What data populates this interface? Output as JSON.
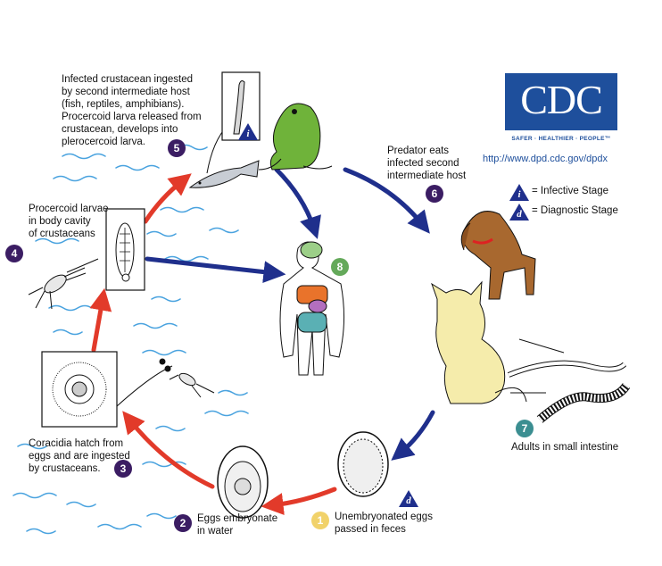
{
  "logo": {
    "text": "CDC",
    "tagline": "SAFER · HEALTHIER · PEOPLE™",
    "url": "http://www.dpd.cdc.gov/dpdx",
    "color": "#1e4f9c"
  },
  "legend": {
    "infective_letter": "i",
    "infective_label": "= Infective Stage",
    "diagnostic_letter": "d",
    "diagnostic_label": "= Diagnostic Stage"
  },
  "steps": {
    "s1": {
      "number": "1",
      "label_line1": "Unembryonated eggs",
      "label_line2": "passed in feces"
    },
    "s2": {
      "number": "2",
      "label_line1": "Eggs embryonate",
      "label_line2": "in water"
    },
    "s3": {
      "number": "3",
      "label_line1": "Coracidia hatch from",
      "label_line2": "eggs and are ingested",
      "label_line3": "by crustaceans."
    },
    "s4": {
      "number": "4",
      "label_line1": "Procercoid larvae",
      "label_line2": "in body cavity",
      "label_line3": "of crustaceans"
    },
    "s5": {
      "number": "5",
      "label_line1": "Infected crustacean ingested",
      "label_line2": "by second intermediate host",
      "label_line3": "(fish, reptiles, amphibians).",
      "label_line4": "Procercoid larva released from",
      "label_line5": "crustacean, develops into",
      "label_line6": "plerocercoid larva."
    },
    "s6": {
      "number": "6",
      "label_line1": "Predator eats",
      "label_line2": "infected second",
      "label_line3": "intermediate host"
    },
    "s7": {
      "number": "7",
      "label_line1": "Adults in small intestine"
    },
    "s8": {
      "number": "8"
    }
  },
  "stage_markers": {
    "infective": "i",
    "diagnostic": "d"
  },
  "colors": {
    "red_arrow": "#e23a2a",
    "blue_arrow": "#1f2f8c",
    "water": "#4aa3df",
    "step_purple": "#3b1d63",
    "step_green": "#64a95a",
    "step_teal": "#3b8e91",
    "step_yellow": "#f1d26a"
  }
}
